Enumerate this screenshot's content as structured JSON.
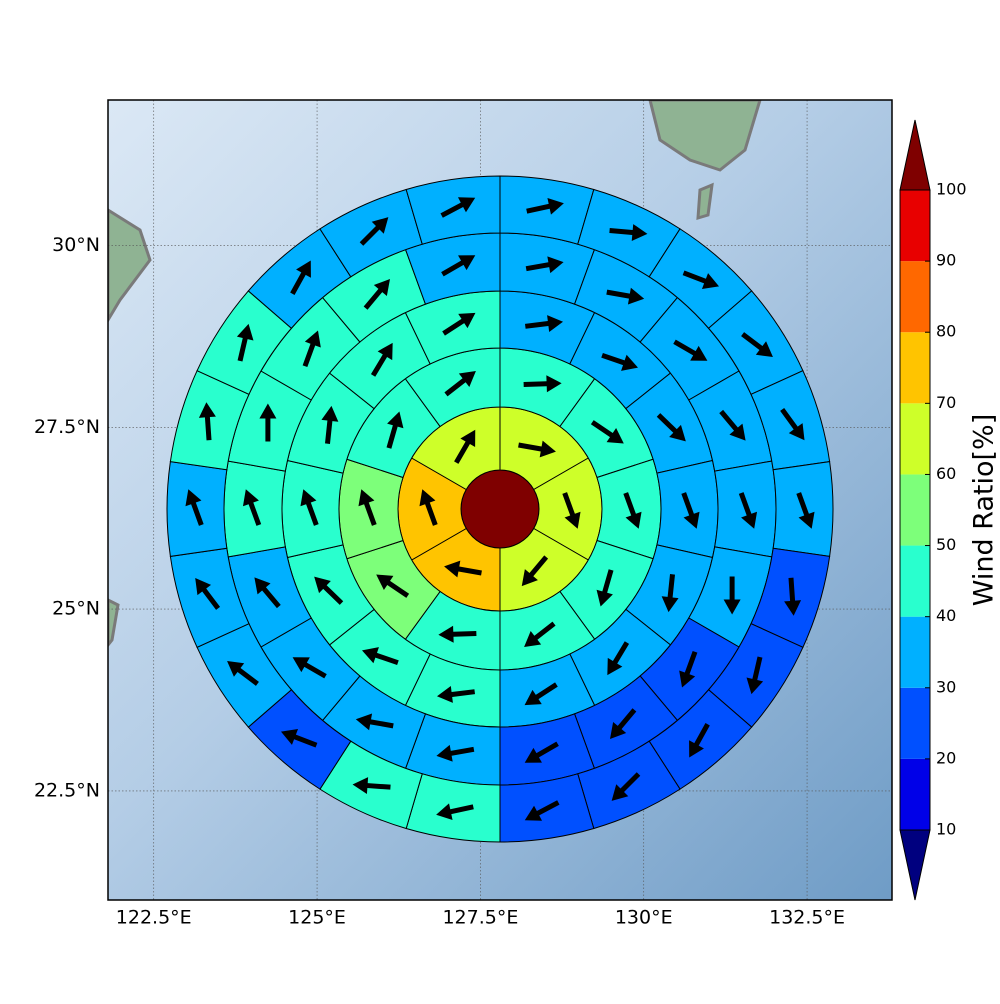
{
  "chart_data": {
    "type": "radial-grid",
    "xlim": [
      121.8,
      133.8
    ],
    "ylim": [
      21.0,
      32.0
    ],
    "xticks": [
      {
        "value": 122.5,
        "label": "122.5°E"
      },
      {
        "value": 125,
        "label": "125°E"
      },
      {
        "value": 127.5,
        "label": "127.5°E"
      },
      {
        "value": 130,
        "label": "130°E"
      },
      {
        "value": 132.5,
        "label": "132.5°E"
      }
    ],
    "yticks": [
      {
        "value": 22.5,
        "label": "22.5°N"
      },
      {
        "value": 25,
        "label": "25°N"
      },
      {
        "value": 27.5,
        "label": "27.5°N"
      },
      {
        "value": 30,
        "label": "30°N"
      }
    ],
    "grid": true,
    "colorbar": {
      "label": "Wind Ratio[%]",
      "ticks": [
        10,
        20,
        30,
        40,
        50,
        60,
        70,
        80,
        90,
        100
      ],
      "colors": [
        "#00007f",
        "#0000e8",
        "#0050ff",
        "#00b0ff",
        "#29ffce",
        "#7dff7a",
        "#ceff29",
        "#ffc400",
        "#ff6800",
        "#e80000",
        "#7f0000"
      ]
    },
    "center": {
      "value": 105
    },
    "rings": [
      {
        "values": [
          65,
          65,
          65,
          75,
          75,
          65
        ],
        "directions": [
          -10,
          -70,
          -130,
          170,
          110,
          60
        ]
      },
      {
        "values": [
          45,
          45,
          45,
          45,
          45,
          45,
          55,
          55,
          45,
          45
        ],
        "directions": [
          2,
          -34,
          -70,
          -106,
          -142,
          -178,
          146,
          110,
          74,
          38
        ]
      },
      {
        "values": [
          35,
          35,
          35,
          35,
          35,
          35,
          35,
          45,
          45,
          45,
          45,
          45,
          45,
          45
        ],
        "directions": [
          7,
          -19,
          -44,
          -70,
          -96,
          -121,
          -147,
          -173,
          161,
          136,
          110,
          84,
          59,
          33
        ]
      },
      {
        "values": [
          35,
          35,
          35,
          35,
          35,
          35,
          25,
          25,
          25,
          35,
          35,
          35,
          35,
          45,
          45,
          45,
          45,
          35
        ],
        "directions": [
          10,
          -10,
          -30,
          -50,
          -70,
          -90,
          -110,
          -130,
          -150,
          -170,
          170,
          150,
          130,
          110,
          90,
          70,
          50,
          30
        ]
      },
      {
        "values": [
          35,
          35,
          35,
          35,
          35,
          35,
          25,
          25,
          25,
          25,
          25,
          45,
          45,
          25,
          35,
          35,
          35,
          45,
          45,
          35,
          35,
          35
        ],
        "directions": [
          12,
          -5,
          -21,
          -37,
          -54,
          -70,
          -86,
          -103,
          -119,
          -135,
          -152,
          -168,
          176,
          159,
          143,
          127,
          110,
          94,
          77,
          61,
          45,
          28
        ]
      }
    ]
  }
}
